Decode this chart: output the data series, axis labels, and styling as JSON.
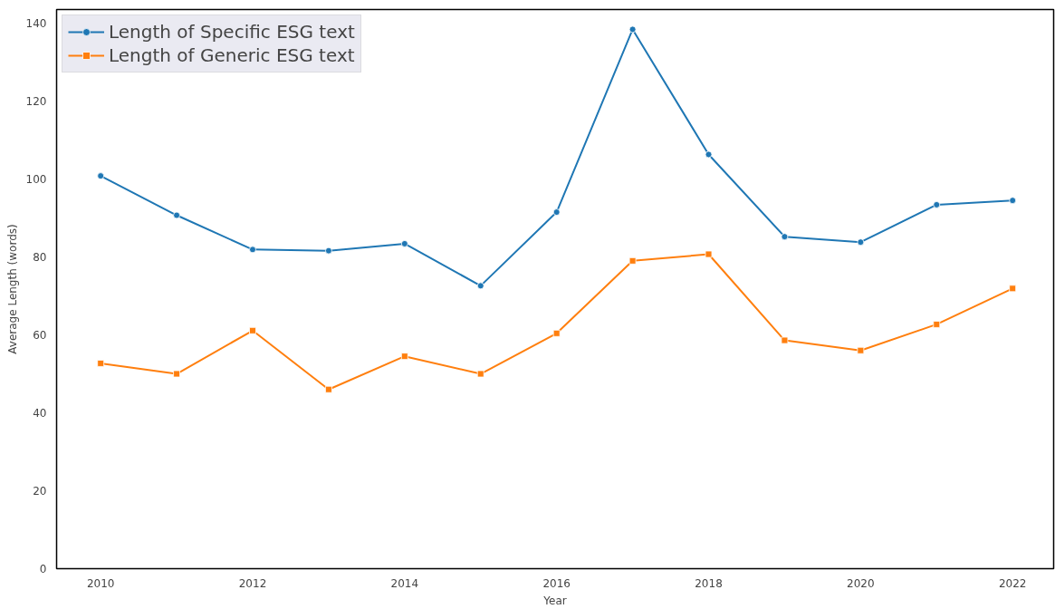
{
  "chart_data": {
    "type": "line",
    "xlabel": "Year",
    "ylabel": "Average Length (words)",
    "x": [
      2010,
      2011,
      2012,
      2013,
      2014,
      2015,
      2016,
      2017,
      2018,
      2019,
      2020,
      2021,
      2022
    ],
    "series": [
      {
        "name": "Length of Specific ESG text",
        "color": "#1f77b4",
        "marker": "circle",
        "values": [
          100.8,
          90.7,
          81.9,
          81.6,
          83.4,
          72.6,
          91.5,
          138.4,
          106.3,
          85.2,
          83.8,
          93.4,
          94.5
        ]
      },
      {
        "name": "Length of Generic ESG text",
        "color": "#ff7f0e",
        "marker": "square",
        "values": [
          52.7,
          50.0,
          61.1,
          46.0,
          54.5,
          50.0,
          60.4,
          79.0,
          80.7,
          58.6,
          56.0,
          62.7,
          71.9
        ]
      }
    ],
    "xlim": [
      2009.42,
      2022.54
    ],
    "ylim": [
      0,
      143.5
    ],
    "xticks": [
      2010,
      2012,
      2014,
      2016,
      2018,
      2020,
      2022
    ],
    "yticks": [
      0,
      20,
      40,
      60,
      80,
      100,
      120,
      140
    ],
    "grid": false,
    "legend": "top left",
    "line_style": "solid"
  }
}
